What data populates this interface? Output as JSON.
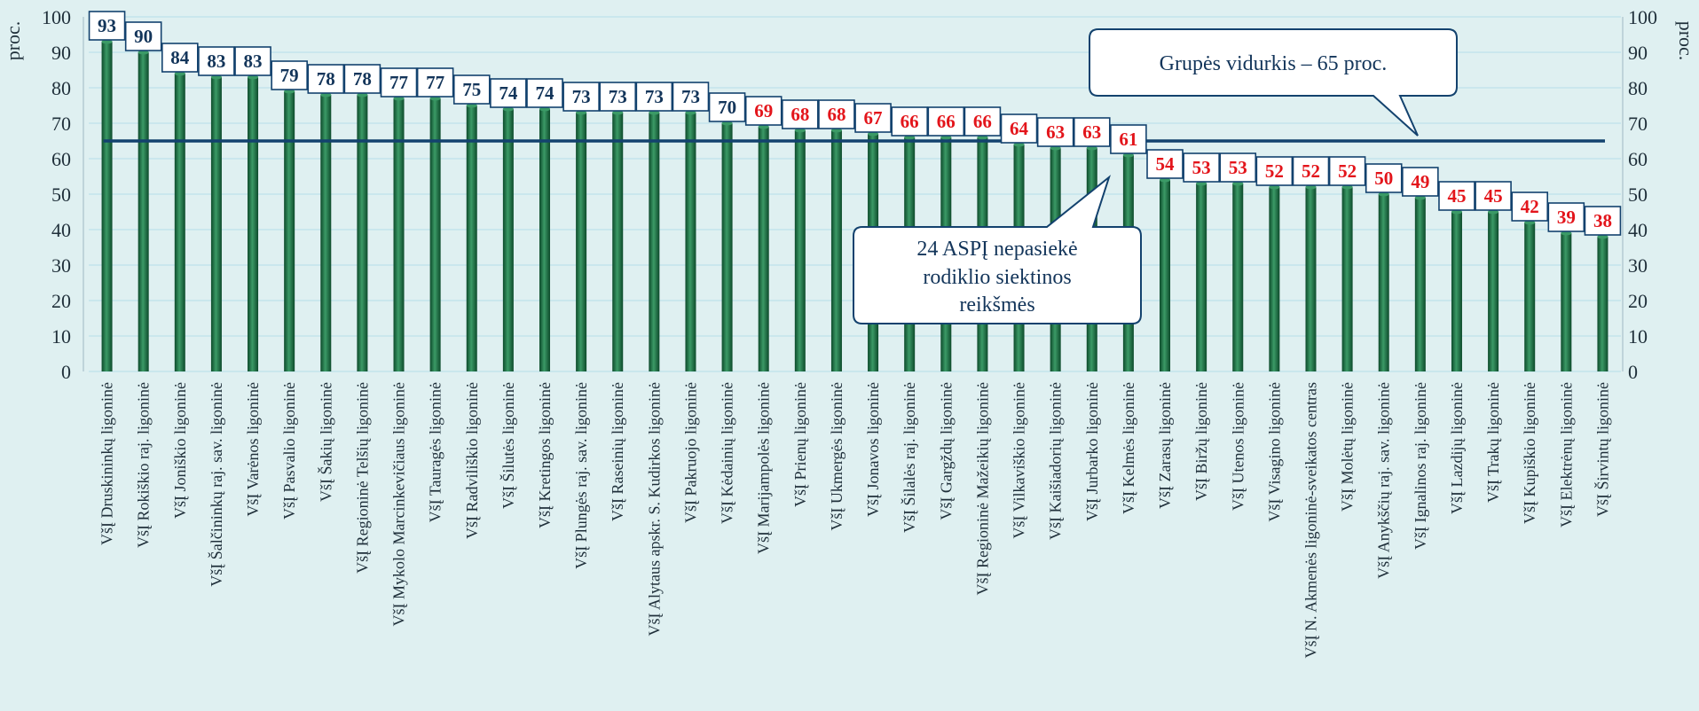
{
  "chart_data": {
    "type": "bar",
    "categories": [
      "VšĮ Druskininkų ligoninė",
      "VšĮ Rokiškio raj. ligoninė",
      "VšĮ Joniškio ligoninė",
      "VšĮ Šalčininkų raj. sav. ligoninė",
      "VšĮ Varėnos ligoninė",
      "VšĮ Pasvalio ligoninė",
      "VšĮ Šakių ligoninė",
      "VšĮ Regioninė Telšių ligoninė",
      "VšĮ Mykolo Marcinkevičiaus ligoninė",
      "VšĮ Tauragės ligoninė",
      "VšĮ Radviliškio ligoninė",
      "VšĮ Šilutės ligoninė",
      "VšĮ Kretingos ligoninė",
      "VšĮ Plungės raj. sav. ligoninė",
      "VšĮ Raseinių ligoninė",
      "VšĮ Alytaus apskr. S. Kudirkos ligoninė",
      "VšĮ Pakruojo ligoninė",
      "VšĮ Kėdainių ligoninė",
      "VšĮ Marijampolės ligoninė",
      "VšĮ Prienų ligoninė",
      "VšĮ Ukmergės ligoninė",
      "VšĮ Jonavos ligoninė",
      "VšĮ Šilalės raj. ligoninė",
      "VšĮ Gargždų ligoninė",
      "VšĮ Regioninė Mažeikių ligoninė",
      "VšĮ Vilkaviškio ligoninė",
      "VšĮ Kaišiadorių ligoninė",
      "VšĮ Jurbarko ligoninė",
      "VšĮ Kelmės ligoninė",
      "VšĮ Zarasų ligoninė",
      "VšĮ Biržų ligoninė",
      "VšĮ Utenos ligoninė",
      "VšĮ Visagino ligoninė",
      "VšĮ N. Akmenės ligoninė-sveikatos centras",
      "VšĮ Molėtų ligoninė",
      "VšĮ Anykščių raj. sav. ligoninė",
      "VšĮ Ignalinos raj. ligoninė",
      "VšĮ Lazdijų ligoninė",
      "VšĮ Trakų ligoninė",
      "VšĮ Kupiškio ligoninė",
      "VšĮ Elektrėnų ligoninė",
      "VšĮ Širvintų ligoninė"
    ],
    "values": [
      93,
      90,
      84,
      83,
      83,
      79,
      78,
      78,
      77,
      77,
      75,
      74,
      74,
      73,
      73,
      73,
      73,
      70,
      69,
      68,
      68,
      67,
      66,
      66,
      66,
      64,
      63,
      63,
      61,
      54,
      53,
      53,
      52,
      52,
      52,
      50,
      49,
      45,
      45,
      42,
      39,
      38
    ],
    "ylim": [
      0,
      100
    ],
    "yticks": [
      "0",
      "10",
      "20",
      "30",
      "40",
      "50",
      "60",
      "70",
      "80",
      "90",
      "100"
    ],
    "ylabel": "proc.",
    "ylabel_right": "proc.",
    "reference_line": {
      "value": 65,
      "label": "Grupės vidurkis – 65 proc."
    },
    "highlight": {
      "below_first_index": 18,
      "label_lines": [
        "24 ASPĮ nepasiekė",
        "rodiklio siektinos",
        "reikšmės"
      ]
    },
    "grid": true,
    "colors": {
      "bar": "#1f6e47",
      "bar_light": "#3b9a66",
      "bar_dark": "#0d4a2b",
      "line": "#13426e",
      "label_ok": "#13355a",
      "label_bad": "#e3151b",
      "grid": "#c4e4ec",
      "background": "#dff0f1"
    }
  }
}
